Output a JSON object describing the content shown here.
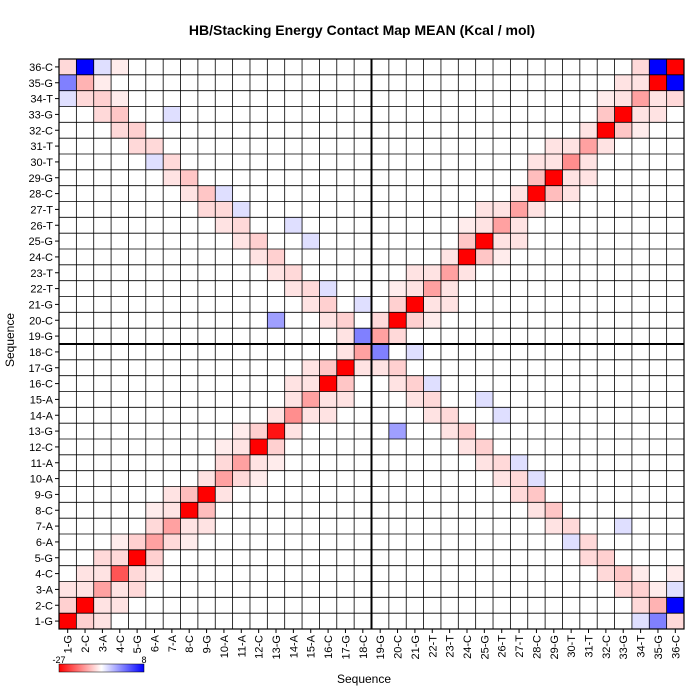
{
  "chart_data": {
    "type": "heatmap",
    "title": "HB/Stacking Energy Contact Map MEAN (Kcal / mol)",
    "xlabel": "Sequence",
    "ylabel": "Sequence",
    "labels": [
      "1-G",
      "2-C",
      "3-A",
      "4-C",
      "5-G",
      "6-A",
      "7-A",
      "8-C",
      "9-G",
      "10-A",
      "11-A",
      "12-C",
      "13-G",
      "14-A",
      "15-A",
      "16-C",
      "17-G",
      "18-C",
      "19-G",
      "20-C",
      "21-G",
      "22-T",
      "23-T",
      "24-C",
      "25-G",
      "26-T",
      "27-T",
      "28-C",
      "29-G",
      "30-T",
      "31-T",
      "32-C",
      "33-G",
      "34-T",
      "35-G",
      "36-C"
    ],
    "x_tick_labels": [
      "1-G",
      "2-C",
      "3-A",
      "4-C",
      "5-G",
      "6-A",
      "7-A",
      "8-C",
      "9-G",
      "10-A",
      "11-A",
      "12-C",
      "13-G",
      "14-A",
      "15-A",
      "16-C",
      "17-G",
      "18-C",
      "19-G",
      "20-C",
      "21-G",
      "22-T",
      "23-T",
      "24-C",
      "25-G",
      "26-T",
      "27-T",
      "28-C",
      "29-G",
      "30-T",
      "31-T",
      "32-C",
      "33-G",
      "34-T",
      "35-G",
      "36-C"
    ],
    "x_tick_first_label": "1-G",
    "colorbar": {
      "min": -27,
      "max": 8,
      "min_label": "-27",
      "max_label": "8",
      "colors": [
        "#ff0000",
        "#ffffff",
        "#0000ff"
      ]
    },
    "grid": true,
    "divider_after_index": 18,
    "cells": [
      [
        0,
        1,
        -5
      ],
      [
        1,
        0,
        -5
      ],
      [
        1,
        1,
        -27
      ],
      [
        0,
        0,
        -27
      ],
      [
        1,
        2,
        -3
      ],
      [
        2,
        1,
        -3
      ],
      [
        2,
        2,
        -10
      ],
      [
        2,
        3,
        -3
      ],
      [
        3,
        2,
        -3
      ],
      [
        3,
        3,
        -18
      ],
      [
        3,
        4,
        -4
      ],
      [
        4,
        3,
        -4
      ],
      [
        4,
        4,
        -27
      ],
      [
        4,
        5,
        -5
      ],
      [
        5,
        4,
        -5
      ],
      [
        5,
        5,
        -10
      ],
      [
        5,
        6,
        -4
      ],
      [
        6,
        5,
        -4
      ],
      [
        6,
        6,
        -10
      ],
      [
        6,
        7,
        -3
      ],
      [
        7,
        6,
        -3
      ],
      [
        7,
        7,
        -27
      ],
      [
        7,
        8,
        -7
      ],
      [
        8,
        7,
        -7
      ],
      [
        8,
        8,
        -27
      ],
      [
        8,
        9,
        -3
      ],
      [
        9,
        8,
        -3
      ],
      [
        9,
        9,
        -10
      ],
      [
        9,
        10,
        -4
      ],
      [
        10,
        9,
        -4
      ],
      [
        10,
        10,
        -10
      ],
      [
        10,
        11,
        -3
      ],
      [
        11,
        10,
        -3
      ],
      [
        11,
        11,
        -27
      ],
      [
        11,
        12,
        -5
      ],
      [
        12,
        11,
        -5
      ],
      [
        12,
        12,
        -25
      ],
      [
        12,
        13,
        -3
      ],
      [
        13,
        12,
        -3
      ],
      [
        13,
        13,
        -12
      ],
      [
        13,
        14,
        -3
      ],
      [
        14,
        13,
        -3
      ],
      [
        14,
        14,
        -10
      ],
      [
        14,
        15,
        -3
      ],
      [
        15,
        14,
        -3
      ],
      [
        15,
        15,
        -27
      ],
      [
        15,
        16,
        -6
      ],
      [
        16,
        15,
        -6
      ],
      [
        16,
        16,
        -27
      ],
      [
        16,
        17,
        -3
      ],
      [
        17,
        16,
        -3
      ],
      [
        17,
        17,
        -10
      ],
      [
        18,
        18,
        -10
      ],
      [
        18,
        19,
        -4
      ],
      [
        19,
        18,
        -4
      ],
      [
        19,
        19,
        -27
      ],
      [
        19,
        20,
        -5
      ],
      [
        20,
        19,
        -5
      ],
      [
        20,
        20,
        -27
      ],
      [
        20,
        21,
        -3
      ],
      [
        21,
        20,
        -3
      ],
      [
        21,
        21,
        -10
      ],
      [
        21,
        22,
        -3
      ],
      [
        22,
        21,
        -3
      ],
      [
        22,
        22,
        -10
      ],
      [
        22,
        23,
        -3
      ],
      [
        23,
        22,
        -3
      ],
      [
        23,
        23,
        -27
      ],
      [
        23,
        24,
        -6
      ],
      [
        24,
        23,
        -6
      ],
      [
        24,
        24,
        -27
      ],
      [
        24,
        25,
        -3
      ],
      [
        25,
        24,
        -3
      ],
      [
        25,
        25,
        -10
      ],
      [
        25,
        26,
        -3
      ],
      [
        26,
        25,
        -3
      ],
      [
        26,
        26,
        -10
      ],
      [
        26,
        27,
        -3
      ],
      [
        27,
        26,
        -3
      ],
      [
        27,
        27,
        -27
      ],
      [
        27,
        28,
        -7
      ],
      [
        28,
        27,
        -7
      ],
      [
        28,
        28,
        -27
      ],
      [
        28,
        29,
        -3
      ],
      [
        29,
        28,
        -3
      ],
      [
        29,
        29,
        -12
      ],
      [
        29,
        30,
        -3
      ],
      [
        30,
        29,
        -3
      ],
      [
        30,
        30,
        -10
      ],
      [
        30,
        31,
        -3
      ],
      [
        31,
        30,
        -3
      ],
      [
        31,
        31,
        -27
      ],
      [
        31,
        32,
        -6
      ],
      [
        32,
        31,
        -6
      ],
      [
        32,
        32,
        -27
      ],
      [
        32,
        33,
        -3
      ],
      [
        33,
        32,
        -3
      ],
      [
        33,
        33,
        -10
      ],
      [
        33,
        34,
        -3
      ],
      [
        34,
        33,
        -3
      ],
      [
        34,
        34,
        -27
      ],
      [
        34,
        35,
        8
      ],
      [
        35,
        34,
        8
      ],
      [
        35,
        35,
        -27
      ],
      [
        17,
        18,
        4
      ],
      [
        18,
        17,
        4
      ],
      [
        0,
        34,
        4
      ],
      [
        34,
        0,
        4
      ],
      [
        1,
        35,
        8
      ],
      [
        35,
        1,
        8
      ],
      [
        3,
        32,
        4
      ],
      [
        32,
        3,
        4
      ],
      [
        7,
        28,
        5
      ],
      [
        28,
        7,
        5
      ],
      [
        11,
        24,
        4
      ],
      [
        24,
        11,
        4
      ],
      [
        12,
        23,
        4
      ],
      [
        23,
        12,
        4
      ],
      [
        15,
        20,
        3
      ],
      [
        20,
        15,
        3
      ],
      [
        16,
        19,
        3
      ],
      [
        19,
        16,
        3
      ],
      [
        8,
        27,
        5
      ],
      [
        27,
        8,
        5
      ],
      [
        19,
        12,
        3
      ],
      [
        12,
        19,
        3
      ],
      [
        31,
        4,
        3
      ],
      [
        4,
        31,
        3
      ],
      [
        30,
        5,
        2
      ],
      [
        5,
        30,
        2
      ],
      [
        0,
        35,
        -4
      ],
      [
        35,
        0,
        -4
      ],
      [
        1,
        34,
        -8
      ],
      [
        34,
        1,
        -8
      ],
      [
        2,
        33,
        -5
      ],
      [
        33,
        2,
        -5
      ],
      [
        3,
        32,
        -6
      ],
      [
        32,
        3,
        -6
      ],
      [
        4,
        31,
        -5
      ],
      [
        31,
        4,
        -5
      ],
      [
        5,
        30,
        -4
      ],
      [
        30,
        5,
        -4
      ],
      [
        6,
        29,
        -4
      ],
      [
        29,
        6,
        -4
      ],
      [
        7,
        28,
        -6
      ],
      [
        28,
        7,
        -6
      ],
      [
        8,
        27,
        -6
      ],
      [
        27,
        8,
        -6
      ],
      [
        9,
        26,
        -4
      ],
      [
        26,
        9,
        -4
      ],
      [
        10,
        25,
        -4
      ],
      [
        25,
        10,
        -4
      ],
      [
        11,
        24,
        -5
      ],
      [
        24,
        11,
        -5
      ],
      [
        12,
        23,
        -5
      ],
      [
        23,
        12,
        -5
      ],
      [
        13,
        22,
        -4
      ],
      [
        22,
        13,
        -4
      ],
      [
        14,
        21,
        -4
      ],
      [
        21,
        14,
        -4
      ],
      [
        15,
        20,
        -5
      ],
      [
        20,
        15,
        -5
      ],
      [
        16,
        19,
        -5
      ],
      [
        19,
        16,
        -5
      ],
      [
        17,
        18,
        -4
      ],
      [
        18,
        17,
        -4
      ],
      [
        1,
        33,
        -4
      ],
      [
        33,
        1,
        -4
      ],
      [
        2,
        32,
        -4
      ],
      [
        32,
        2,
        -4
      ],
      [
        3,
        31,
        -4
      ],
      [
        31,
        3,
        -4
      ],
      [
        4,
        30,
        -4
      ],
      [
        30,
        4,
        -4
      ],
      [
        6,
        28,
        -3
      ],
      [
        28,
        6,
        -3
      ],
      [
        7,
        27,
        -3
      ],
      [
        27,
        7,
        -3
      ],
      [
        8,
        26,
        -4
      ],
      [
        26,
        8,
        -4
      ],
      [
        9,
        25,
        -3
      ],
      [
        25,
        9,
        -3
      ],
      [
        10,
        24,
        -3
      ],
      [
        24,
        10,
        -3
      ],
      [
        11,
        23,
        -3
      ],
      [
        23,
        11,
        -3
      ],
      [
        12,
        22,
        -3
      ],
      [
        22,
        12,
        -3
      ],
      [
        13,
        21,
        -3
      ],
      [
        21,
        13,
        -3
      ],
      [
        14,
        20,
        -3
      ],
      [
        20,
        14,
        -3
      ],
      [
        15,
        19,
        -3
      ],
      [
        19,
        15,
        -3
      ],
      [
        16,
        18,
        -3
      ],
      [
        18,
        16,
        -3
      ],
      [
        0,
        2,
        -3
      ],
      [
        2,
        0,
        -3
      ],
      [
        1,
        3,
        -3
      ],
      [
        3,
        1,
        -3
      ],
      [
        2,
        4,
        -4
      ],
      [
        4,
        2,
        -4
      ],
      [
        3,
        5,
        -2
      ],
      [
        5,
        3,
        -2
      ],
      [
        5,
        7,
        -2
      ],
      [
        7,
        5,
        -2
      ],
      [
        6,
        8,
        -3
      ],
      [
        8,
        6,
        -3
      ],
      [
        9,
        11,
        -2
      ],
      [
        11,
        9,
        -2
      ],
      [
        10,
        12,
        -2
      ],
      [
        12,
        10,
        -2
      ],
      [
        13,
        15,
        -3
      ],
      [
        15,
        13,
        -3
      ],
      [
        14,
        16,
        -3
      ],
      [
        16,
        14,
        -3
      ],
      [
        19,
        21,
        -2
      ],
      [
        21,
        19,
        -2
      ],
      [
        20,
        22,
        -3
      ],
      [
        22,
        20,
        -3
      ],
      [
        23,
        25,
        -2
      ],
      [
        25,
        23,
        -2
      ],
      [
        24,
        26,
        -3
      ],
      [
        26,
        24,
        -3
      ],
      [
        27,
        29,
        -3
      ],
      [
        29,
        27,
        -3
      ],
      [
        28,
        30,
        -3
      ],
      [
        30,
        28,
        -3
      ],
      [
        31,
        33,
        -2
      ],
      [
        33,
        31,
        -2
      ],
      [
        32,
        34,
        -3
      ],
      [
        34,
        32,
        -3
      ],
      [
        33,
        35,
        -4
      ],
      [
        35,
        33,
        -4
      ],
      [
        35,
        3,
        -2
      ],
      [
        3,
        35,
        -2
      ],
      [
        34,
        2,
        -2
      ],
      [
        2,
        34,
        -2
      ],
      [
        33,
        3,
        -2
      ],
      [
        3,
        33,
        -2
      ],
      [
        30,
        4,
        1
      ],
      [
        4,
        30,
        1
      ],
      [
        29,
        5,
        1
      ],
      [
        5,
        29,
        1
      ],
      [
        26,
        10,
        1
      ],
      [
        10,
        26,
        1
      ],
      [
        22,
        12,
        1
      ],
      [
        12,
        22,
        1
      ],
      [
        25,
        13,
        1
      ],
      [
        13,
        25,
        1
      ],
      [
        24,
        14,
        1
      ],
      [
        14,
        24,
        1
      ],
      [
        21,
        15,
        1
      ],
      [
        15,
        21,
        1
      ],
      [
        33,
        0,
        1
      ],
      [
        0,
        33,
        1
      ],
      [
        35,
        2,
        1
      ],
      [
        2,
        35,
        1
      ],
      [
        27,
        9,
        1
      ],
      [
        9,
        27,
        1
      ],
      [
        20,
        17,
        1
      ],
      [
        17,
        20,
        1
      ],
      [
        32,
        6,
        1
      ],
      [
        6,
        32,
        1
      ]
    ]
  }
}
